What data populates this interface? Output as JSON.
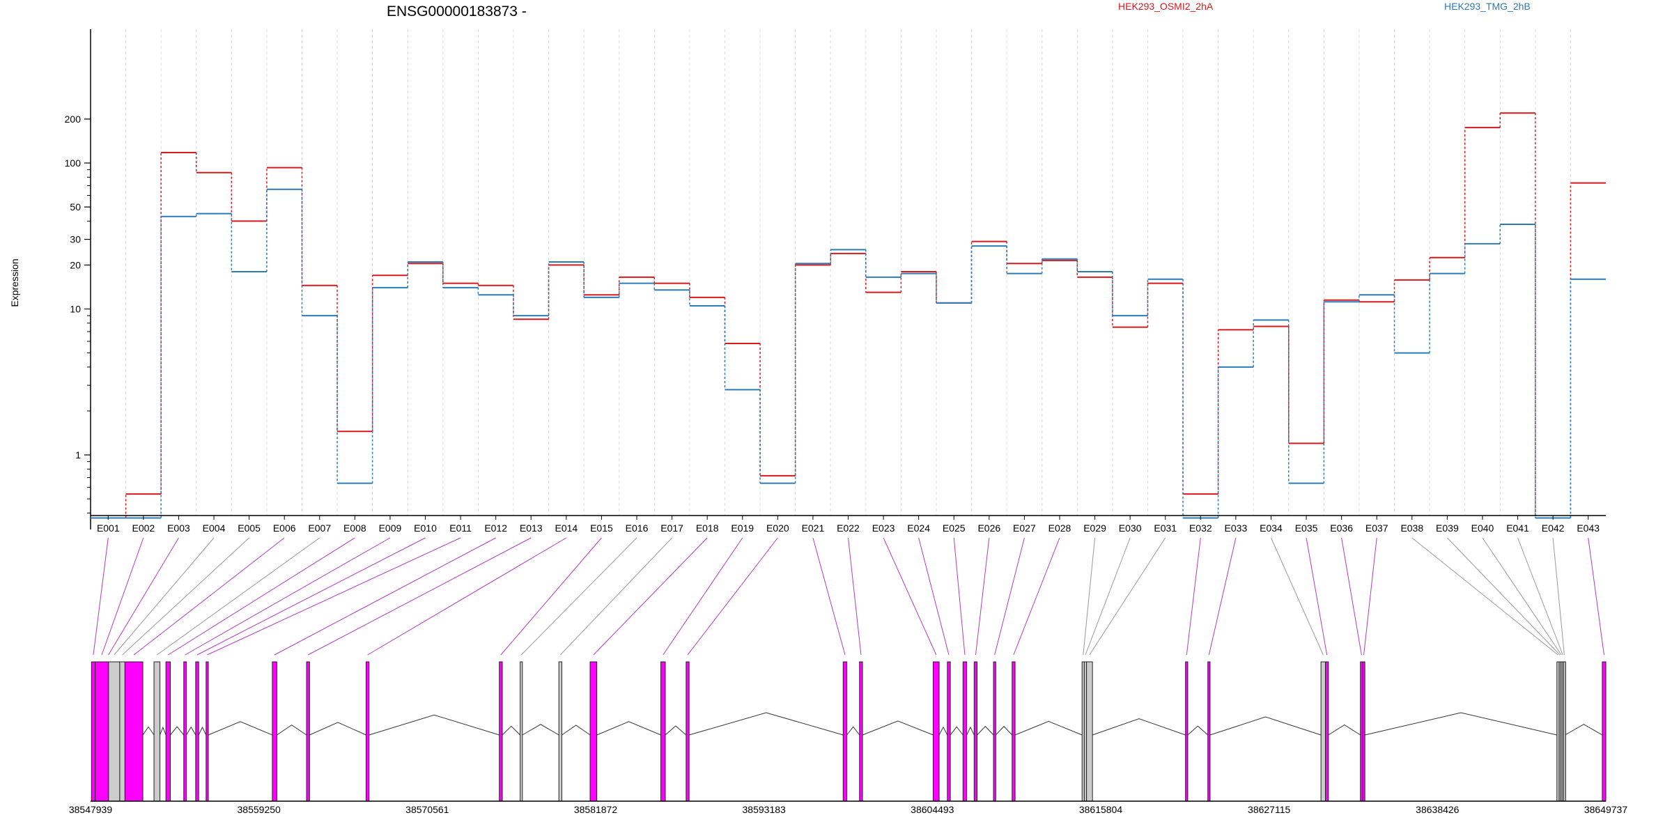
{
  "chart_data": {
    "type": "line",
    "title": "ENSG00000183873 -",
    "ylabel": "Expression",
    "yscale": "log",
    "ylim": [
      0.3,
      260
    ],
    "yticks": [
      1,
      10,
      20,
      30,
      50,
      100,
      200
    ],
    "ytick_labels": [
      "1",
      "10",
      "20",
      "30",
      "50",
      "100",
      "200"
    ],
    "grid": "vertical dashed lines at exon boundaries",
    "legend_position": "top-right",
    "categories": [
      "E001",
      "E002",
      "E003",
      "E004",
      "E005",
      "E006",
      "E007",
      "E008",
      "E009",
      "E010",
      "E011",
      "E012",
      "E013",
      "E014",
      "E015",
      "E016",
      "E017",
      "E018",
      "E019",
      "E020",
      "E021",
      "E022",
      "E023",
      "E024",
      "E025",
      "E026",
      "E027",
      "E028",
      "E029",
      "E030",
      "E031",
      "E032",
      "E033",
      "E034",
      "E035",
      "E036",
      "E037",
      "E038",
      "E039",
      "E040",
      "E041",
      "E042",
      "E043"
    ],
    "series": [
      {
        "name": "HEK293_OSMI2_2hA",
        "color": "#d7191c",
        "values": [
          0.37,
          0.54,
          118,
          86,
          40,
          93,
          14.5,
          1.45,
          17,
          20.5,
          15,
          14.5,
          8.5,
          20,
          12.5,
          16.5,
          15,
          12,
          5.8,
          0.72,
          20,
          24,
          13,
          18,
          11,
          29,
          20.5,
          21.5,
          16.5,
          7.5,
          15,
          0.54,
          7.2,
          7.6,
          1.2,
          11.5,
          11.2,
          15.8,
          22.5,
          175,
          220,
          0.37,
          73
        ]
      },
      {
        "name": "HEK293_TMG_2hB",
        "color": "#2c7bb6",
        "values": [
          0.37,
          0.37,
          43,
          45,
          18,
          66,
          9,
          0.64,
          14,
          21,
          14,
          12.5,
          9,
          21,
          12,
          15,
          13.5,
          10.5,
          2.8,
          0.64,
          20.5,
          25.5,
          16.5,
          17.5,
          11,
          27,
          17.5,
          22,
          18,
          9,
          16,
          0.37,
          4,
          8.4,
          0.64,
          11.2,
          12.5,
          5,
          17.5,
          28,
          38,
          0.37,
          16
        ]
      }
    ]
  },
  "gene_model": {
    "coordinate_labels": [
      "38547939",
      "38559250",
      "38570561",
      "38581872",
      "38593183",
      "38604493",
      "38615804",
      "38627115",
      "38638426",
      "38649737"
    ],
    "genomic_range": [
      38547939,
      38649737
    ],
    "exon_colors": {
      "tested": "#ff00ff",
      "untested": "#cccccc",
      "edge": "#222222"
    },
    "exons": [
      {
        "id": "E001",
        "start": 38548000,
        "end": 38548250,
        "state": "tested"
      },
      {
        "id": "E002",
        "start": 38548250,
        "end": 38549130,
        "state": "tested"
      },
      {
        "id": "E003",
        "start": 38549130,
        "end": 38549150,
        "state": "tested"
      },
      {
        "id": "E004",
        "start": 38549150,
        "end": 38549900,
        "state": "untested"
      },
      {
        "id": "E005",
        "start": 38549900,
        "end": 38550250,
        "state": "untested"
      },
      {
        "id": "E006",
        "start": 38550250,
        "end": 38551450,
        "state": "tested"
      },
      {
        "id": "E007",
        "start": 38552200,
        "end": 38552600,
        "state": "untested"
      },
      {
        "id": "E008",
        "start": 38553000,
        "end": 38553300,
        "state": "tested"
      },
      {
        "id": "E009",
        "start": 38554200,
        "end": 38554380,
        "state": "tested"
      },
      {
        "id": "E010",
        "start": 38555000,
        "end": 38555200,
        "state": "tested"
      },
      {
        "id": "E011",
        "start": 38555700,
        "end": 38555850,
        "state": "tested"
      },
      {
        "id": "E012",
        "start": 38560150,
        "end": 38560450,
        "state": "tested"
      },
      {
        "id": "E013",
        "start": 38562450,
        "end": 38562650,
        "state": "tested"
      },
      {
        "id": "E014",
        "start": 38566450,
        "end": 38566650,
        "state": "tested"
      },
      {
        "id": "E015",
        "start": 38575400,
        "end": 38575600,
        "state": "tested"
      },
      {
        "id": "E016",
        "start": 38576800,
        "end": 38576950,
        "state": "untested"
      },
      {
        "id": "E017",
        "start": 38579400,
        "end": 38579600,
        "state": "untested"
      },
      {
        "id": "E018",
        "start": 38581500,
        "end": 38581950,
        "state": "tested"
      },
      {
        "id": "E019",
        "start": 38586250,
        "end": 38586550,
        "state": "tested"
      },
      {
        "id": "E020",
        "start": 38587950,
        "end": 38588150,
        "state": "tested"
      },
      {
        "id": "E021",
        "start": 38598500,
        "end": 38598750,
        "state": "tested"
      },
      {
        "id": "E022",
        "start": 38599600,
        "end": 38599800,
        "state": "tested"
      },
      {
        "id": "E023",
        "start": 38604550,
        "end": 38604950,
        "state": "tested"
      },
      {
        "id": "E024",
        "start": 38605500,
        "end": 38605700,
        "state": "tested"
      },
      {
        "id": "E025",
        "start": 38606550,
        "end": 38606800,
        "state": "tested"
      },
      {
        "id": "E026",
        "start": 38607300,
        "end": 38607500,
        "state": "tested"
      },
      {
        "id": "E027",
        "start": 38608600,
        "end": 38608750,
        "state": "tested"
      },
      {
        "id": "E028",
        "start": 38609850,
        "end": 38610050,
        "state": "tested"
      },
      {
        "id": "E029",
        "start": 38614550,
        "end": 38614700,
        "state": "untested"
      },
      {
        "id": "E030",
        "start": 38614700,
        "end": 38614850,
        "state": "untested"
      },
      {
        "id": "E031",
        "start": 38614850,
        "end": 38615250,
        "state": "untested"
      },
      {
        "id": "E032",
        "start": 38621500,
        "end": 38621650,
        "state": "tested"
      },
      {
        "id": "E033",
        "start": 38623000,
        "end": 38623150,
        "state": "tested"
      },
      {
        "id": "E034",
        "start": 38630600,
        "end": 38630900,
        "state": "untested"
      },
      {
        "id": "E035",
        "start": 38630900,
        "end": 38631100,
        "state": "tested"
      },
      {
        "id": "E036",
        "start": 38633250,
        "end": 38633400,
        "state": "tested"
      },
      {
        "id": "E037",
        "start": 38633400,
        "end": 38633550,
        "state": "tested"
      },
      {
        "id": "E038",
        "start": 38646450,
        "end": 38646600,
        "state": "untested"
      },
      {
        "id": "E039",
        "start": 38646600,
        "end": 38646700,
        "state": "untested"
      },
      {
        "id": "E040",
        "start": 38646700,
        "end": 38646800,
        "state": "untested"
      },
      {
        "id": "E041",
        "start": 38646800,
        "end": 38646900,
        "state": "untested"
      },
      {
        "id": "E042",
        "start": 38646900,
        "end": 38647000,
        "state": "untested"
      },
      {
        "id": "E043",
        "start": 38649500,
        "end": 38649737,
        "state": "tested"
      }
    ]
  }
}
